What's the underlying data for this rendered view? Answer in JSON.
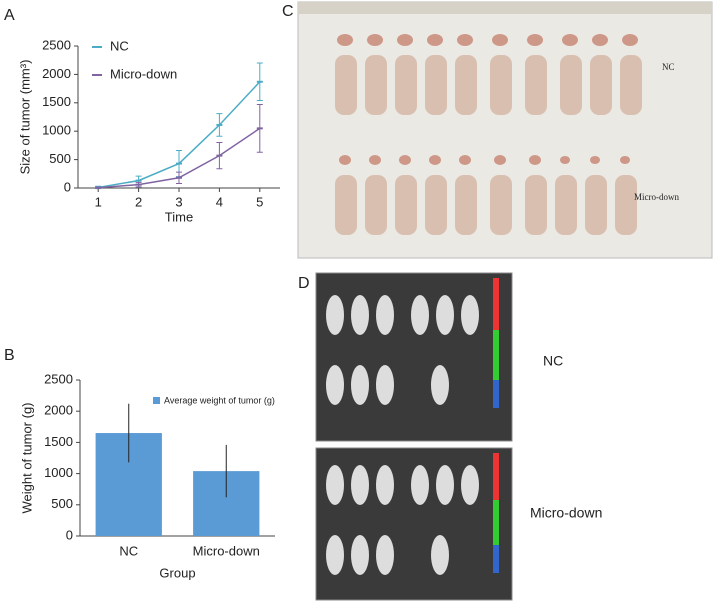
{
  "panel_labels": [
    "A",
    "B",
    "C",
    "D"
  ],
  "photo_c_labels": [
    "NC",
    "Micro-down"
  ],
  "photo_d_labels": [
    "NC",
    "Micro-down"
  ],
  "chart_data": [
    {
      "type": "line",
      "x_label": "Time",
      "y_label": "Size of tumor (mm³)",
      "x": [
        1,
        2,
        3,
        4,
        5
      ],
      "xlim": [
        0.5,
        5.5
      ],
      "xticks": [
        1,
        2,
        3,
        4,
        5
      ],
      "ylim": [
        0,
        2500
      ],
      "yticks": [
        0,
        500,
        1000,
        1500,
        2000,
        2500
      ],
      "legend": "top-left",
      "series": [
        {
          "name": "NC",
          "color": "#4bacc6",
          "values": [
            10,
            130,
            430,
            1110,
            1870
          ],
          "errors": [
            20,
            80,
            230,
            200,
            330
          ]
        },
        {
          "name": "Micro-down",
          "color": "#8064a2",
          "values": [
            5,
            60,
            180,
            570,
            1050
          ],
          "errors": [
            10,
            40,
            100,
            230,
            420
          ]
        }
      ]
    },
    {
      "type": "bar",
      "x_label": "Group",
      "y_label": "Weight of tumor (g)",
      "categories": [
        "NC",
        "Micro-down"
      ],
      "ylim": [
        0,
        2500
      ],
      "yticks": [
        0,
        500,
        1000,
        1500,
        2000,
        2500
      ],
      "legend": "top-right",
      "series": [
        {
          "name": "Average weight of tumor (g)",
          "color": "#5b9bd5",
          "values": [
            1650,
            1040
          ],
          "errors": [
            470,
            420
          ]
        }
      ]
    }
  ]
}
